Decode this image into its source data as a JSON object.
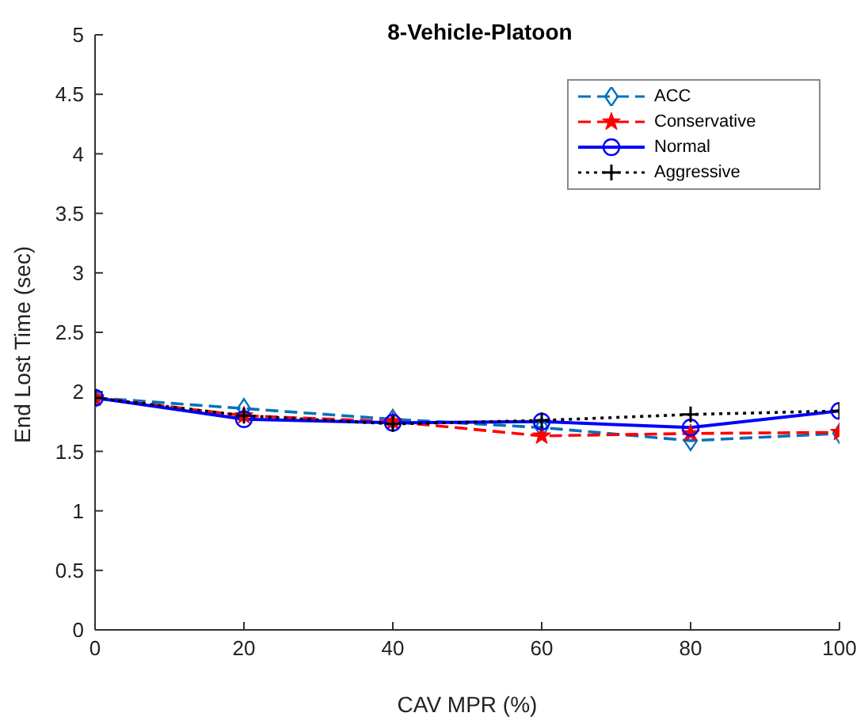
{
  "chart_data": {
    "type": "line",
    "title": "8-Vehicle-Platoon",
    "xlabel": "CAV MPR (%)",
    "ylabel": "End Lost Time (sec)",
    "x": [
      0,
      20,
      40,
      60,
      80,
      100
    ],
    "series": [
      {
        "name": "ACC",
        "color": "#0072bd",
        "marker": "diamond",
        "line_style": "dashed",
        "values": [
          1.95,
          1.86,
          1.77,
          1.7,
          1.59,
          1.65
        ]
      },
      {
        "name": "Conservative",
        "color": "#ff0000",
        "marker": "star",
        "line_style": "dashed",
        "values": [
          1.95,
          1.8,
          1.75,
          1.63,
          1.65,
          1.66
        ]
      },
      {
        "name": "Normal",
        "color": "#0000ff",
        "marker": "circle",
        "line_style": "solid",
        "values": [
          1.95,
          1.77,
          1.74,
          1.75,
          1.7,
          1.84
        ]
      },
      {
        "name": "Aggressive",
        "color": "#000000",
        "marker": "cross",
        "line_style": "dotted",
        "values": [
          1.95,
          1.8,
          1.73,
          1.76,
          1.81,
          1.84
        ]
      }
    ],
    "xlim": [
      0,
      100
    ],
    "xticks": [
      0,
      20,
      40,
      60,
      80,
      100
    ],
    "ylim": [
      0,
      5
    ],
    "yticks": [
      0,
      0.5,
      1,
      1.5,
      2,
      2.5,
      3,
      3.5,
      4,
      4.5,
      5
    ],
    "grid": false,
    "legend": "top right"
  }
}
